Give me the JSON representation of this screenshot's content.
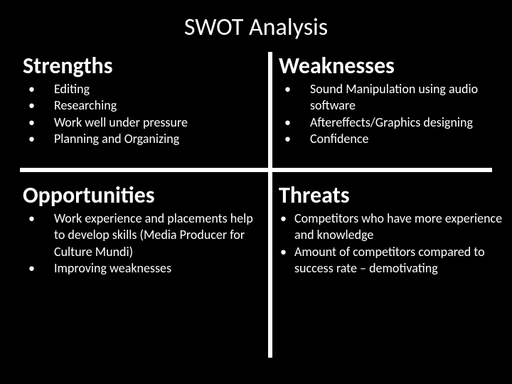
{
  "slide": {
    "title": "SWOT Analysis",
    "background_color": "#000000",
    "text_color": "#ffffff",
    "divider_color": "#ffffff",
    "title_fontsize": 34,
    "heading_fontsize": 32,
    "body_fontsize": 18,
    "quadrants": {
      "strengths": {
        "heading": "Strengths",
        "items": [
          "Editing",
          "Researching",
          "Work well under pressure",
          "Planning and Organizing"
        ]
      },
      "weaknesses": {
        "heading": "Weaknesses",
        "items": [
          "Sound Manipulation using audio software",
          "Aftereffects/Graphics designing",
          "Confidence"
        ]
      },
      "opportunities": {
        "heading": "Opportunities",
        "items": [
          "Work experience and placements help to develop skills (Media Producer for Culture Mundi)",
          " Improving weaknesses"
        ]
      },
      "threats": {
        "heading": "Threats",
        "items": [
          "Competitors who have more experience and knowledge",
          "Amount of competitors compared to success rate – demotivating"
        ]
      }
    }
  }
}
